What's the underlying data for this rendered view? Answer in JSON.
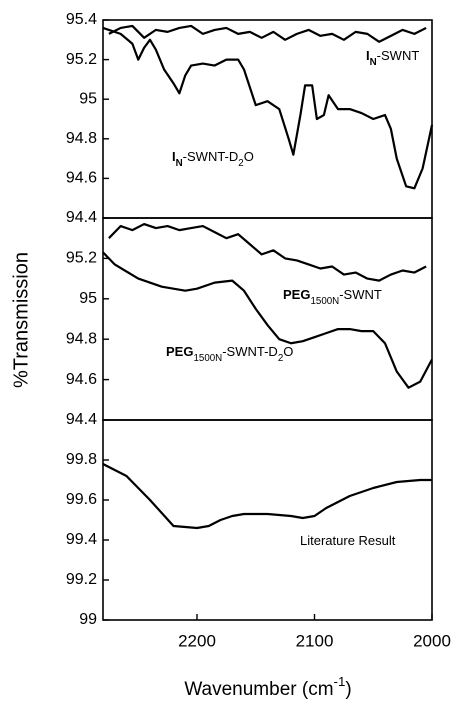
{
  "chart_data": [
    {
      "type": "line",
      "xlim": [
        2280,
        2000
      ],
      "ylim": [
        94.4,
        95.4
      ],
      "yticks": [
        94.4,
        94.6,
        94.8,
        95.0,
        95.2,
        95.4
      ],
      "series": [
        {
          "color": "#000000",
          "x": [
            2275,
            2265,
            2255,
            2245,
            2235,
            2225,
            2215,
            2205,
            2195,
            2185,
            2175,
            2165,
            2155,
            2145,
            2135,
            2125,
            2115,
            2105,
            2095,
            2085,
            2075,
            2065,
            2055,
            2045,
            2035,
            2025,
            2015,
            2005
          ],
          "values": [
            95.33,
            95.36,
            95.37,
            95.31,
            95.35,
            95.34,
            95.36,
            95.37,
            95.33,
            95.35,
            95.36,
            95.33,
            95.34,
            95.31,
            95.34,
            95.3,
            95.33,
            95.35,
            95.32,
            95.33,
            95.3,
            95.34,
            95.33,
            95.29,
            95.32,
            95.35,
            95.33,
            95.36
          ]
        },
        {
          "color": "#000000",
          "x": [
            2280,
            2265,
            2255,
            2250,
            2245,
            2240,
            2235,
            2228,
            2220,
            2215,
            2210,
            2205,
            2195,
            2185,
            2175,
            2165,
            2160,
            2150,
            2140,
            2130,
            2122,
            2118,
            2112,
            2108,
            2102,
            2098,
            2092,
            2088,
            2080,
            2070,
            2060,
            2050,
            2040,
            2035,
            2030,
            2022,
            2015,
            2008,
            2000
          ],
          "values": [
            95.36,
            95.33,
            95.28,
            95.2,
            95.26,
            95.3,
            95.25,
            95.15,
            95.08,
            95.03,
            95.12,
            95.17,
            95.18,
            95.17,
            95.2,
            95.2,
            95.15,
            94.97,
            94.99,
            94.95,
            94.8,
            94.72,
            94.92,
            95.07,
            95.07,
            94.9,
            94.92,
            95.02,
            94.95,
            94.95,
            94.93,
            94.9,
            94.92,
            94.85,
            94.7,
            94.56,
            94.55,
            94.65,
            94.87
          ]
        }
      ],
      "annotations": [
        {
          "parts": [
            {
              "text": "I",
              "bold": true
            },
            {
              "text": "N",
              "bold": true,
              "sub": true
            },
            {
              "text": "-SWNT"
            }
          ]
        },
        {
          "parts": [
            {
              "text": "I",
              "bold": true
            },
            {
              "text": "N",
              "bold": true,
              "sub": true
            },
            {
              "text": "-SWNT-D"
            },
            {
              "text": "2",
              "sub": true
            },
            {
              "text": "O"
            }
          ]
        }
      ]
    },
    {
      "type": "line",
      "xlim": [
        2280,
        2000
      ],
      "ylim": [
        94.4,
        95.4
      ],
      "yticks": [
        94.4,
        94.6,
        94.8,
        95.0,
        95.2
      ],
      "ylabel": "%Transmission",
      "series": [
        {
          "color": "#000000",
          "x": [
            2275,
            2265,
            2255,
            2245,
            2235,
            2225,
            2215,
            2205,
            2195,
            2185,
            2175,
            2165,
            2155,
            2145,
            2135,
            2125,
            2115,
            2105,
            2095,
            2085,
            2075,
            2065,
            2055,
            2045,
            2035,
            2025,
            2015,
            2005
          ],
          "values": [
            95.3,
            95.36,
            95.34,
            95.37,
            95.35,
            95.36,
            95.34,
            95.35,
            95.36,
            95.33,
            95.3,
            95.32,
            95.27,
            95.22,
            95.24,
            95.2,
            95.19,
            95.17,
            95.15,
            95.16,
            95.12,
            95.13,
            95.1,
            95.09,
            95.12,
            95.14,
            95.13,
            95.16
          ]
        },
        {
          "color": "#000000",
          "x": [
            2280,
            2270,
            2250,
            2230,
            2210,
            2200,
            2185,
            2170,
            2160,
            2150,
            2140,
            2130,
            2120,
            2110,
            2100,
            2090,
            2080,
            2070,
            2060,
            2050,
            2040,
            2030,
            2020,
            2010,
            2000
          ],
          "values": [
            95.23,
            95.17,
            95.1,
            95.06,
            95.04,
            95.05,
            95.08,
            95.09,
            95.04,
            94.95,
            94.87,
            94.8,
            94.78,
            94.79,
            94.81,
            94.83,
            94.85,
            94.85,
            94.84,
            94.84,
            94.78,
            94.64,
            94.56,
            94.59,
            94.7
          ]
        }
      ],
      "annotations": [
        {
          "parts": [
            {
              "text": "PEG",
              "bold": true
            },
            {
              "text": "1500N",
              "sub": true
            },
            {
              "text": "-SWNT"
            }
          ]
        },
        {
          "parts": [
            {
              "text": "PEG",
              "bold": true
            },
            {
              "text": "1500N",
              "sub": true
            },
            {
              "text": "-SWNT-D"
            },
            {
              "text": "2",
              "sub": true
            },
            {
              "text": "O"
            }
          ]
        }
      ]
    },
    {
      "type": "line",
      "xlim": [
        2280,
        2000
      ],
      "ylim": [
        99.0,
        100.0
      ],
      "yticks": [
        99.0,
        99.2,
        99.4,
        99.6,
        99.8
      ],
      "xticks": [
        2200,
        2100,
        2000
      ],
      "xlabel": [
        {
          "text": "Wavenumber (cm"
        },
        {
          "text": "-1",
          "sup": true
        },
        {
          "text": ")"
        }
      ],
      "series": [
        {
          "color": "#000000",
          "x": [
            2280,
            2260,
            2240,
            2220,
            2200,
            2190,
            2180,
            2170,
            2160,
            2140,
            2120,
            2110,
            2100,
            2090,
            2070,
            2050,
            2030,
            2010,
            2000
          ],
          "values": [
            99.78,
            99.72,
            99.6,
            99.47,
            99.46,
            99.47,
            99.5,
            99.52,
            99.53,
            99.53,
            99.52,
            99.51,
            99.52,
            99.56,
            99.62,
            99.66,
            99.69,
            99.7,
            99.7
          ]
        }
      ],
      "annotations": [
        {
          "parts": [
            {
              "text": "Literature Result"
            }
          ]
        }
      ]
    }
  ]
}
